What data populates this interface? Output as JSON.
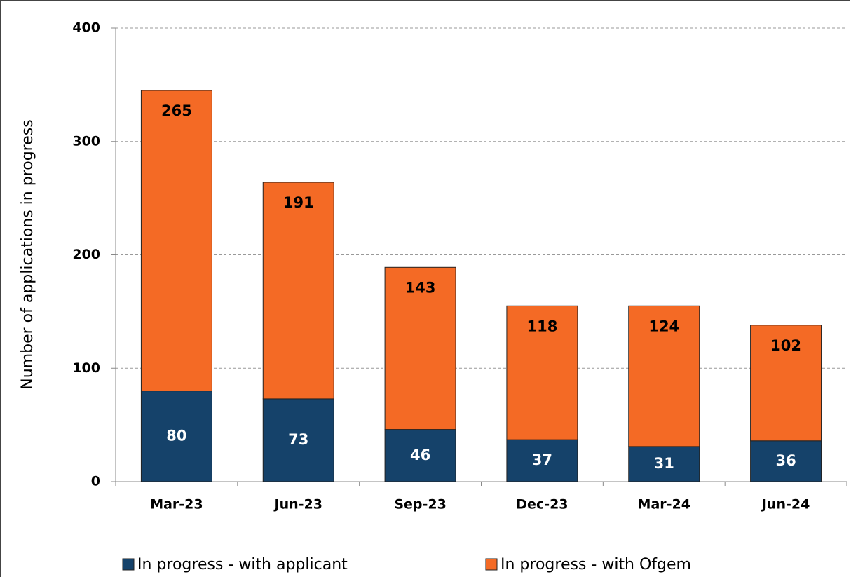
{
  "chart_data": {
    "type": "stacked_bar",
    "y_label": "Number of applications in progress",
    "categories": [
      "Mar-23",
      "Jun-23",
      "Sep-23",
      "Dec-23",
      "Mar-24",
      "Jun-24"
    ],
    "series": [
      {
        "name": "In progress - with applicant",
        "color": "#15426a",
        "label_color": "#ffffff",
        "values": [
          80,
          73,
          46,
          37,
          31,
          36
        ]
      },
      {
        "name": "In progress - with Ofgem",
        "color": "#f46a25",
        "label_color": "#000000",
        "values": [
          265,
          191,
          143,
          118,
          124,
          102
        ]
      }
    ],
    "ylim": [
      0,
      400
    ],
    "yticks": [
      0,
      100,
      200,
      300,
      400
    ],
    "grid": true,
    "legend": "bottom"
  }
}
